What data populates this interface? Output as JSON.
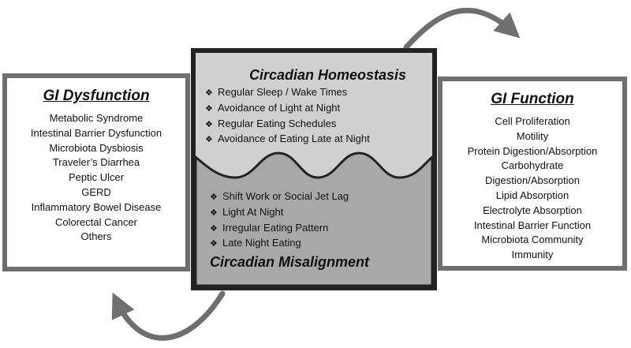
{
  "homeostasis": {
    "title": "Circadian Homeostasis",
    "items": [
      "Regular Sleep / Wake Times",
      "Avoidance of Light at Night",
      "Regular Eating Schedules",
      "Avoidance of Eating Late at Night"
    ]
  },
  "misalignment": {
    "title": "Circadian Misalignment",
    "items": [
      "Shift Work  or Social Jet Lag",
      "Light At Night",
      "Irregular Eating Pattern",
      "Late Night Eating"
    ]
  },
  "gi_dysfunction": {
    "title": "GI Dysfunction",
    "items": [
      "Metabolic Syndrome",
      "Intestinal Barrier Dysfunction",
      "Microbiota Dysbiosis",
      "Traveler’s Diarrhea",
      "Peptic Ulcer",
      "GERD",
      "Inflammatory Bowel Disease",
      "Colorectal Cancer",
      "Others"
    ]
  },
  "gi_function": {
    "title": "GI Function",
    "items": [
      "Cell Proliferation",
      "Motility",
      "Protein Digestion/Absorption",
      "Carbohydrate",
      "Digestion/Absorption",
      "Lipid Absorption",
      "Electrolyte Absorption",
      "Intestinal Barrier Function",
      "Microbiota Community",
      "Immunity"
    ]
  },
  "bullet_symbol": "❖",
  "colors": {
    "frame_gray": "#6f6f6f",
    "top_fill": "#d0d0d0",
    "bottom_fill": "#a8a8a8",
    "center_border": "#222222"
  }
}
